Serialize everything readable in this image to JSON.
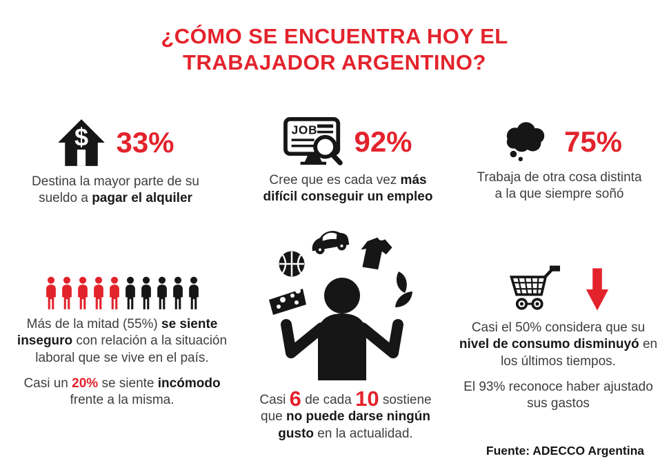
{
  "title": "¿CÓMO SE ENCUENTRA HOY EL\nTRABAJADOR ARGENTINO?",
  "colors": {
    "accent_red": "#e3232c",
    "ink": "#161616",
    "text_gray": "#3e3e3e",
    "background": "#ffffff"
  },
  "stats": {
    "rent": {
      "icon": "house-dollar-icon",
      "value": "33%",
      "caption": [
        {
          "t": "Destina la mayor parte de su\nsueldo a "
        },
        {
          "t": "pagar el alquiler",
          "b": 1
        }
      ]
    },
    "employment": {
      "icon": "job-search-icon",
      "icon_label": "JOB",
      "value": "92%",
      "caption": [
        {
          "t": "Cree que es cada vez "
        },
        {
          "t": "más\ndifícil conseguir un empleo",
          "b": 1
        }
      ]
    },
    "dream": {
      "icon": "thought-bubble-icon",
      "value": "75%",
      "caption": [
        {
          "t": "Trabaja de otra cosa distinta\na la que siempre soñó"
        }
      ]
    },
    "insecurity": {
      "icon": "people-pictogram",
      "figures": {
        "red": 5,
        "black": 5
      },
      "paragraphs": [
        [
          {
            "t": "Más de la mitad (55%) "
          },
          {
            "t": "se siente\ninseguro",
            "b": 1
          },
          {
            "t": " con relación a la situación\nlaboral que se vive en el país."
          }
        ],
        [
          {
            "t": "Casi un "
          },
          {
            "t": "20%",
            "b": 1,
            "r": 1
          },
          {
            "t": " se siente "
          },
          {
            "t": "incómodo",
            "b": 1
          },
          {
            "t": "\nfrente a la misma."
          }
        ]
      ]
    },
    "treats": {
      "icon": "juggler-icon",
      "ratio": {
        "numerator": "6",
        "denominator": "10"
      },
      "caption": [
        {
          "t": "Casi "
        },
        {
          "t": "6",
          "big": 1
        },
        {
          "t": " de cada "
        },
        {
          "t": "10",
          "big": 1
        },
        {
          "t": " sostiene\nque "
        },
        {
          "t": "no puede darse ningún\ngusto",
          "b": 1
        },
        {
          "t": " en la actualidad."
        }
      ]
    },
    "consumption": {
      "icon": "shopping-cart-icon",
      "arrow_icon": "down-arrow-icon",
      "paragraphs": [
        [
          {
            "t": "Casi el 50% considera que su\n"
          },
          {
            "t": "nivel de consumo disminuyó",
            "b": 1
          },
          {
            "t": " en\nlos últimos tiempos."
          }
        ],
        [
          {
            "t": "El 93% reconoce haber ajustado\nsus gastos"
          }
        ]
      ]
    }
  },
  "source": "Fuente: ADECCO Argentina",
  "chart_data": {
    "type": "table",
    "title": "¿CÓMO SE ENCUENTRA HOY EL TRABAJADOR ARGENTINO?",
    "rows": [
      {
        "metric": "Destina la mayor parte de su sueldo a pagar el alquiler",
        "value": 33,
        "unit": "%"
      },
      {
        "metric": "Cree que es cada vez más difícil conseguir un empleo",
        "value": 92,
        "unit": "%"
      },
      {
        "metric": "Trabaja de otra cosa distinta a la que siempre soñó",
        "value": 75,
        "unit": "%"
      },
      {
        "metric": "Se siente inseguro con relación a la situación laboral que se vive en el país",
        "value": 55,
        "unit": "%"
      },
      {
        "metric": "Se siente incómodo frente a la situación laboral",
        "value": 20,
        "unit": "%"
      },
      {
        "metric": "Sostiene que no puede darse ningún gusto en la actualidad",
        "value": 60,
        "unit": "% (6 de cada 10)"
      },
      {
        "metric": "Considera que su nivel de consumo disminuyó en los últimos tiempos",
        "value": 50,
        "unit": "%"
      },
      {
        "metric": "Reconoce haber ajustado sus gastos",
        "value": 93,
        "unit": "%"
      }
    ],
    "pictogram": {
      "total_figures": 10,
      "red_figures": 5,
      "black_figures": 5
    },
    "source": "Fuente: ADECCO Argentina"
  }
}
